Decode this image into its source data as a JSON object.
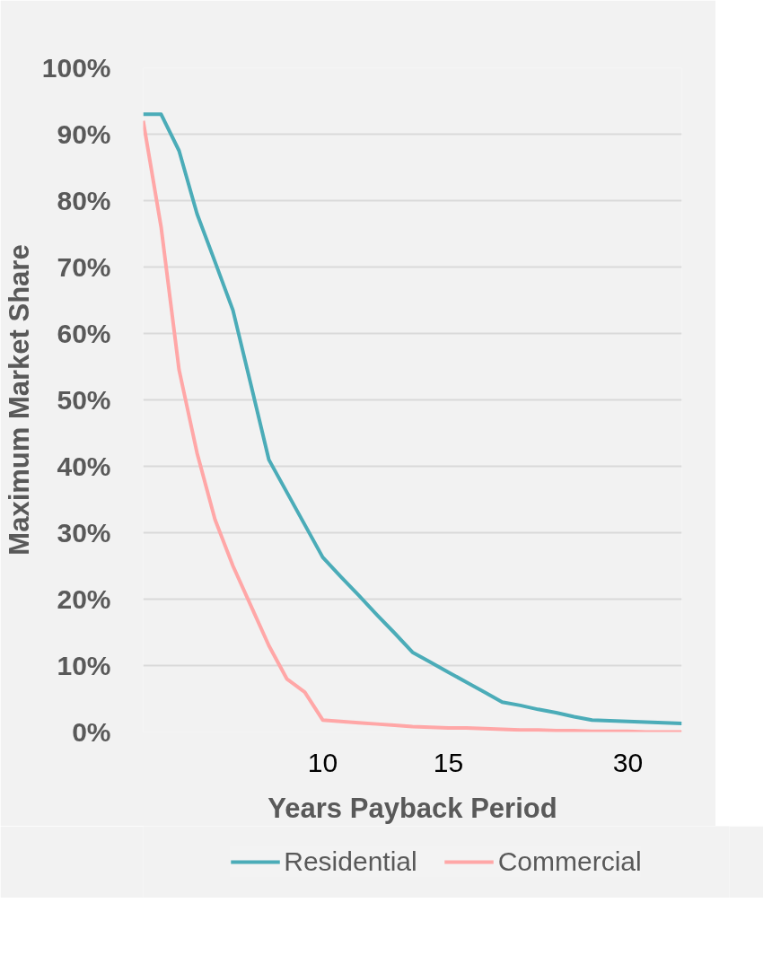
{
  "chart_data": {
    "type": "line",
    "xlabel": "Years Payback Period",
    "ylabel": "Maximum Market Share",
    "categories": [
      null,
      null,
      null,
      null,
      null,
      null,
      null,
      null,
      null,
      null,
      "10",
      null,
      null,
      null,
      null,
      null,
      null,
      "15",
      null,
      null,
      null,
      null,
      null,
      null,
      null,
      null,
      null,
      "30",
      null,
      null,
      null
    ],
    "ylim": [
      0,
      100
    ],
    "yticks": [
      {
        "value": 0,
        "label": "0%"
      },
      {
        "value": 10,
        "label": "10%"
      },
      {
        "value": 20,
        "label": "20%"
      },
      {
        "value": 30,
        "label": "30%"
      },
      {
        "value": 40,
        "label": "40%"
      },
      {
        "value": 50,
        "label": "50%"
      },
      {
        "value": 60,
        "label": "60%"
      },
      {
        "value": 70,
        "label": "70%"
      },
      {
        "value": 80,
        "label": "80%"
      },
      {
        "value": 90,
        "label": "90%"
      },
      {
        "value": 100,
        "label": "100%"
      }
    ],
    "grid": "y",
    "legend": "bottom",
    "series": [
      {
        "name": "Residential",
        "color": "#4bacb8",
        "values": [
          93,
          93,
          87.5,
          78,
          70.8,
          63.5,
          52.3,
          41,
          36.1,
          31.2,
          26.3,
          23.4,
          20.6,
          17.7,
          14.9,
          12,
          10.5,
          9,
          7.5,
          6,
          4.5,
          4,
          3.4,
          2.9,
          2.3,
          1.8,
          1.7,
          1.6,
          1.5,
          1.4,
          1.3
        ]
      },
      {
        "name": "Commercial",
        "color": "#ffa7a7",
        "values": [
          92,
          76,
          54.5,
          42,
          32,
          25,
          19,
          13,
          8,
          6,
          1.8,
          1.6,
          1.4,
          1.2,
          1,
          0.8,
          0.7,
          0.6,
          0.6,
          0.5,
          0.4,
          0.3,
          0.3,
          0.2,
          0.2,
          0.1,
          0.1,
          0.1,
          0,
          0,
          0
        ]
      }
    ]
  }
}
